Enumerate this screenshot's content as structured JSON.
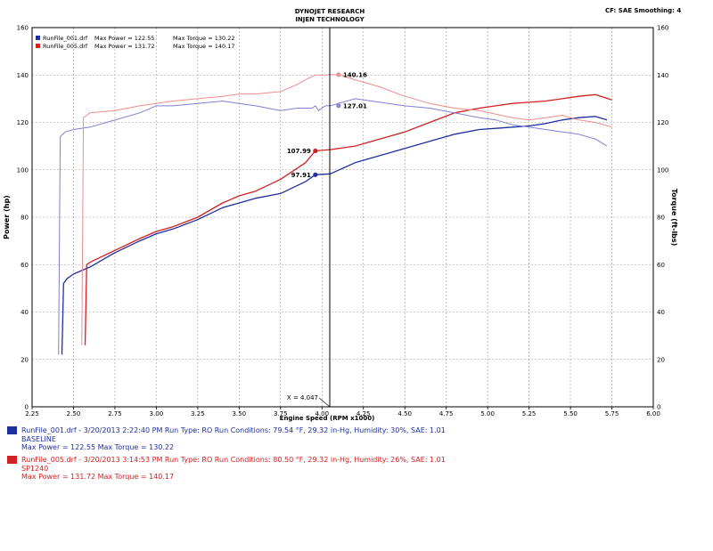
{
  "header": {
    "title_line1": "DYNOJET RESEARCH",
    "title_line2": "INJEN TECHNOLOGY",
    "top_right": "CF: SAE  Smoothing: 4"
  },
  "chart_data": {
    "type": "line",
    "xlabel": "Engine Speed (RPM x1000)",
    "ylabel": "Power (hp)",
    "y2label": "Torque (ft-lbs)",
    "xlim": [
      2.25,
      6.0
    ],
    "ylim": [
      0,
      160
    ],
    "y2lim": [
      0,
      160
    ],
    "xticks": [
      "2.25",
      "2.50",
      "2.75",
      "3.00",
      "3.25",
      "3.50",
      "3.75",
      "4.00",
      "4.25",
      "4.50",
      "4.75",
      "5.00",
      "5.25",
      "5.50",
      "5.75",
      "6.00"
    ],
    "yticks": [
      "0",
      "20",
      "40",
      "60",
      "80",
      "100",
      "120",
      "140",
      "160"
    ],
    "grid": true,
    "legend_position": "top-left",
    "legend": [
      {
        "file": "RunFile_001.drf",
        "power_label": "Max Power = 122.55",
        "torque_label": "Max Torque = 130.22",
        "color": "#1f2f9e"
      },
      {
        "file": "RunFile_005.drf",
        "power_label": "Max Power = 131.72",
        "torque_label": "Max Torque = 140.17",
        "color": "#d42020"
      }
    ],
    "cursor": {
      "x": 4.047,
      "label": "X = 4.047"
    },
    "markers": [
      {
        "series": "RunFile_005.drf torque",
        "x": 4.1,
        "y": 140.16,
        "label": "140.16",
        "color": "#f09090"
      },
      {
        "series": "RunFile_001.drf torque",
        "x": 4.1,
        "y": 127.01,
        "label": "127.01",
        "color": "#8888dd"
      },
      {
        "series": "RunFile_005.drf power",
        "x": 3.96,
        "y": 107.99,
        "label": "107.99",
        "color": "#d42020"
      },
      {
        "series": "RunFile_001.drf power",
        "x": 3.96,
        "y": 97.91,
        "label": "97.91",
        "color": "#1f2f9e"
      }
    ],
    "series": [
      {
        "name": "RunFile_001.drf",
        "measure": "power",
        "axis": "left",
        "color": "#1f2f9e",
        "width": 1.3,
        "x": [
          2.43,
          2.44,
          2.46,
          2.5,
          2.6,
          2.75,
          2.9,
          3.0,
          3.1,
          3.25,
          3.4,
          3.5,
          3.6,
          3.75,
          3.9,
          3.96,
          4.05,
          4.2,
          4.35,
          4.5,
          4.65,
          4.8,
          4.95,
          5.05,
          5.15,
          5.25,
          5.35,
          5.45,
          5.55,
          5.65,
          5.72
        ],
        "y": [
          22,
          52,
          54,
          56,
          59,
          65,
          70,
          73,
          75,
          79,
          84,
          86,
          88,
          90,
          95,
          97.91,
          98.3,
          103,
          106,
          109,
          112,
          115,
          117,
          117.5,
          118,
          118.5,
          119.5,
          121,
          122,
          122.5,
          121
        ]
      },
      {
        "name": "RunFile_005.drf",
        "measure": "power",
        "axis": "left",
        "color": "#d42020",
        "width": 1.3,
        "x": [
          2.57,
          2.58,
          2.6,
          2.75,
          2.9,
          3.0,
          3.1,
          3.25,
          3.4,
          3.5,
          3.6,
          3.75,
          3.9,
          3.96,
          4.05,
          4.2,
          4.35,
          4.5,
          4.65,
          4.8,
          4.95,
          5.05,
          5.15,
          5.25,
          5.35,
          5.45,
          5.55,
          5.65,
          5.75
        ],
        "y": [
          26,
          60,
          61,
          66,
          71,
          74,
          76,
          80,
          86,
          89,
          91,
          96,
          103,
          107.99,
          108.5,
          110,
          113,
          116,
          120,
          124,
          126,
          127,
          128,
          128.5,
          129,
          130,
          131,
          131.7,
          129.5
        ]
      },
      {
        "name": "RunFile_001.drf",
        "measure": "torque",
        "axis": "right",
        "color": "#7f7fd4",
        "width": 1.0,
        "x": [
          2.41,
          2.42,
          2.45,
          2.5,
          2.6,
          2.75,
          2.9,
          3.0,
          3.1,
          3.25,
          3.4,
          3.5,
          3.6,
          3.75,
          3.85,
          3.9,
          3.94,
          3.96,
          3.98,
          4.02,
          4.05,
          4.2,
          4.35,
          4.5,
          4.65,
          4.8,
          4.95,
          5.05,
          5.15,
          5.25,
          5.35,
          5.45,
          5.55,
          5.65,
          5.72
        ],
        "y": [
          22,
          114,
          116,
          117,
          118,
          121,
          124,
          127,
          127,
          128,
          129,
          128,
          127,
          125,
          126,
          126,
          126,
          127,
          125,
          127,
          127.01,
          130,
          128.5,
          127,
          126,
          124,
          122,
          121,
          119,
          118,
          117,
          116,
          115,
          113,
          110
        ]
      },
      {
        "name": "RunFile_005.drf",
        "measure": "torque",
        "axis": "right",
        "color": "#ef8c8c",
        "width": 1.0,
        "x": [
          2.55,
          2.56,
          2.58,
          2.6,
          2.75,
          2.9,
          3.0,
          3.1,
          3.25,
          3.4,
          3.5,
          3.6,
          3.75,
          3.85,
          3.9,
          3.96,
          4.02,
          4.05,
          4.1,
          4.2,
          4.35,
          4.5,
          4.65,
          4.8,
          4.95,
          5.05,
          5.15,
          5.25,
          5.35,
          5.45,
          5.55,
          5.65,
          5.75
        ],
        "y": [
          26,
          122,
          123,
          124,
          125,
          127,
          128,
          129,
          130,
          131,
          132,
          132,
          133,
          136,
          138,
          140,
          140,
          140.16,
          140.1,
          138,
          135,
          131,
          128,
          126,
          125,
          123.5,
          122,
          121,
          122,
          123,
          121,
          120,
          118
        ]
      }
    ]
  },
  "footer": {
    "run1_line": "RunFile_001.drf - 3/20/2013 2:22:40 PM   Run Type: RO  Run Conditions: 79.54 °F, 29.32 in-Hg,  Humidity:  30%, SAE: 1.01",
    "run1_name": "BASELINE",
    "run1_stats": "Max Power = 122.55  Max Torque = 130.22",
    "run2_line": "RunFile_005.drf - 3/20/2013 3:14:53 PM   Run Type: RO  Run Conditions: 80.50 °F, 29.32 in-Hg,  Humidity:  26%, SAE: 1.01",
    "run2_name": "SP1240",
    "run2_stats": "Max Power = 131.72  Max Torque = 140.17"
  }
}
